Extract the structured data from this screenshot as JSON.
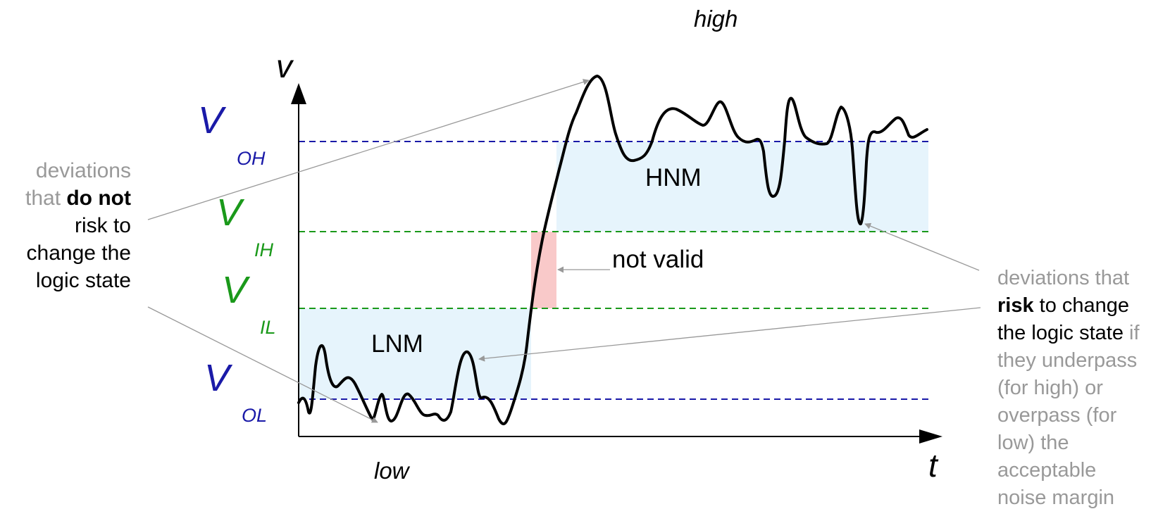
{
  "labels": {
    "high": "high",
    "low": "low",
    "v_axis": "v",
    "t_axis": "t",
    "hnm": "HNM",
    "lnm": "LNM",
    "not_valid": "not valid"
  },
  "levels": {
    "voh": {
      "v": "V",
      "sub": "OH",
      "color": "#1a1aa8"
    },
    "vih": {
      "v": "V",
      "sub": "IH",
      "color": "#1a991a"
    },
    "vil": {
      "v": "V",
      "sub": "IL",
      "color": "#1a991a"
    },
    "vol": {
      "v": "V",
      "sub": "OL",
      "color": "#1a1aa8"
    }
  },
  "left_note": {
    "line1": "deviations",
    "line2_pre": "that ",
    "line2_bold": "do not",
    "line3": "risk to",
    "line4": "change the",
    "line5": "logic state"
  },
  "right_note": {
    "line1": "deviations that",
    "line2_bold": "risk",
    "line2_rest": " to change",
    "line3_dark": "the logic state",
    "line3_gray": " if",
    "line4": "they underpass",
    "line5": "(for high) or",
    "line6": "overpass (for",
    "line7": "low) the",
    "line8": "acceptable",
    "line9": "noise margin"
  },
  "colors": {
    "noise_margin_fill": "#e6f4fc",
    "invalid_fill": "#f9c9c9",
    "blue_line": "#1a1aa8",
    "green_line": "#1a991a",
    "gray_text": "#999999",
    "arrow_gray": "#999999"
  }
}
